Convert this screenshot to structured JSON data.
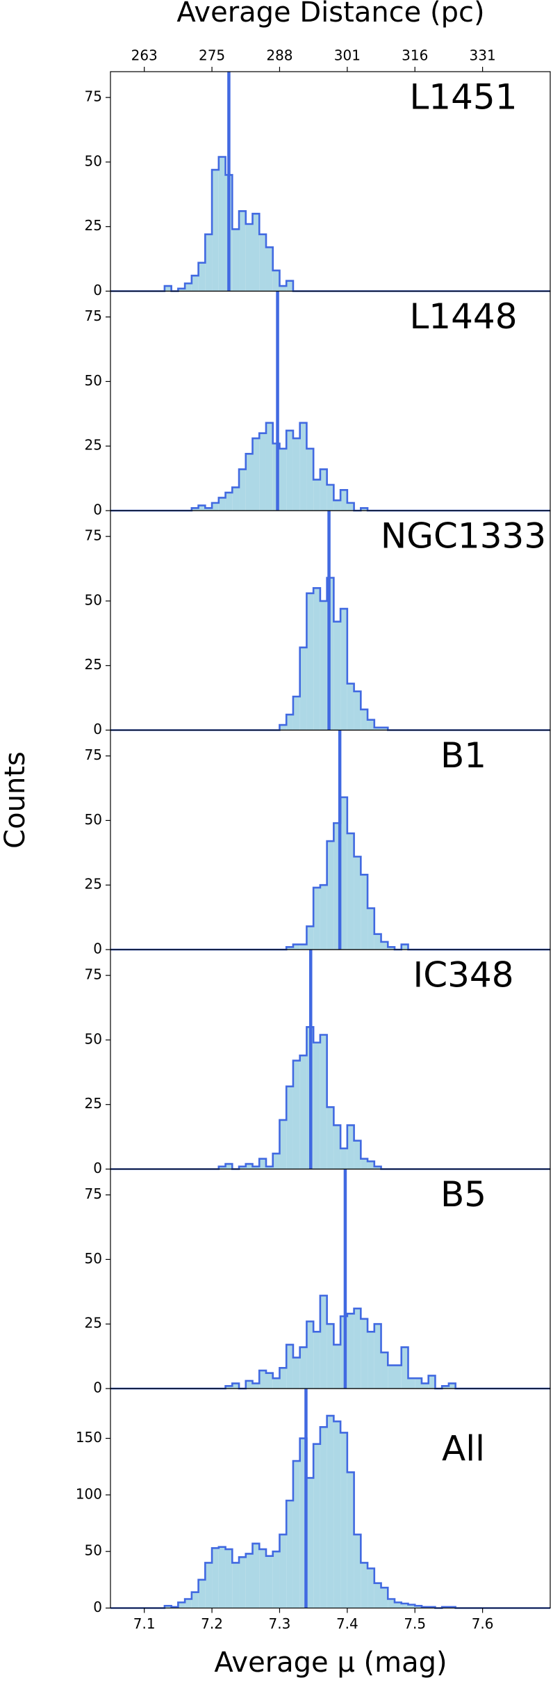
{
  "ylabel": "Counts",
  "top_axis": {
    "label": "Average Distance (pc)",
    "ticks": [
      {
        "value": 7.1,
        "label": "263"
      },
      {
        "value": 7.2,
        "label": "275"
      },
      {
        "value": 7.3,
        "label": "288"
      },
      {
        "value": 7.4,
        "label": "301"
      },
      {
        "value": 7.5,
        "label": "316"
      },
      {
        "value": 7.6,
        "label": "331"
      }
    ]
  },
  "x_axis": {
    "label": "Average μ (mag)",
    "xlim": [
      7.05,
      7.7
    ],
    "xticks": [
      7.1,
      7.2,
      7.3,
      7.4,
      7.5,
      7.6
    ]
  },
  "chart_data": [
    {
      "type": "histogram",
      "label": "L1451",
      "color": "#add8e6",
      "edgecolor": "#4169e1",
      "ylim": [
        0,
        85
      ],
      "yticks": [
        0,
        25,
        50,
        75
      ],
      "vline": 7.225,
      "bins": [
        7.13,
        7.14,
        7.15,
        7.16,
        7.17,
        7.18,
        7.19,
        7.2,
        7.21,
        7.22,
        7.23,
        7.24,
        7.25,
        7.26,
        7.27,
        7.28,
        7.29,
        7.3,
        7.31,
        7.32
      ],
      "values": [
        2,
        0,
        1,
        3,
        6,
        11,
        22,
        47,
        52,
        45,
        24,
        31,
        26,
        30,
        22,
        17,
        8,
        2,
        4
      ]
    },
    {
      "type": "histogram",
      "label": "L1448",
      "color": "#add8e6",
      "edgecolor": "#4169e1",
      "ylim": [
        0,
        85
      ],
      "yticks": [
        0,
        25,
        50,
        75
      ],
      "vline": 7.297,
      "bins": [
        7.17,
        7.18,
        7.19,
        7.2,
        7.21,
        7.22,
        7.23,
        7.24,
        7.25,
        7.26,
        7.27,
        7.28,
        7.29,
        7.3,
        7.31,
        7.32,
        7.33,
        7.34,
        7.35,
        7.36,
        7.37,
        7.38,
        7.39,
        7.4,
        7.41,
        7.42,
        7.43,
        7.44
      ],
      "values": [
        1,
        2,
        1,
        3,
        5,
        7,
        9,
        16,
        22,
        28,
        30,
        34,
        26,
        24,
        31,
        28,
        34,
        24,
        12,
        16,
        10,
        4,
        8,
        3,
        0,
        1,
        0
      ]
    },
    {
      "type": "histogram",
      "label": "NGC1333",
      "color": "#add8e6",
      "edgecolor": "#4169e1",
      "ylim": [
        0,
        85
      ],
      "yticks": [
        0,
        25,
        50,
        75
      ],
      "vline": 7.373,
      "bins": [
        7.3,
        7.31,
        7.32,
        7.33,
        7.34,
        7.35,
        7.36,
        7.37,
        7.38,
        7.39,
        7.4,
        7.41,
        7.42,
        7.43,
        7.44,
        7.45,
        7.46,
        7.47
      ],
      "values": [
        2,
        6,
        13,
        32,
        53,
        55,
        50,
        59,
        42,
        47,
        18,
        15,
        8,
        4,
        1,
        1,
        0
      ]
    },
    {
      "type": "histogram",
      "label": "B1",
      "color": "#add8e6",
      "edgecolor": "#4169e1",
      "ylim": [
        0,
        85
      ],
      "yticks": [
        0,
        25,
        50,
        75
      ],
      "vline": 7.389,
      "bins": [
        7.31,
        7.32,
        7.33,
        7.34,
        7.35,
        7.36,
        7.37,
        7.38,
        7.39,
        7.4,
        7.41,
        7.42,
        7.43,
        7.44,
        7.45,
        7.46,
        7.47,
        7.48,
        7.49
      ],
      "values": [
        1,
        2,
        2,
        9,
        24,
        25,
        42,
        49,
        59,
        45,
        36,
        29,
        16,
        6,
        3,
        1,
        0,
        2
      ]
    },
    {
      "type": "histogram",
      "label": "IC348",
      "color": "#add8e6",
      "edgecolor": "#4169e1",
      "ylim": [
        0,
        85
      ],
      "yticks": [
        0,
        25,
        50,
        75
      ],
      "vline": 7.346,
      "bins": [
        7.21,
        7.22,
        7.23,
        7.24,
        7.25,
        7.26,
        7.27,
        7.28,
        7.29,
        7.3,
        7.31,
        7.32,
        7.33,
        7.34,
        7.35,
        7.36,
        7.37,
        7.38,
        7.39,
        7.4,
        7.41,
        7.42,
        7.43,
        7.44,
        7.45
      ],
      "values": [
        1,
        2,
        0,
        1,
        2,
        1,
        4,
        1,
        6,
        19,
        32,
        42,
        44,
        55,
        49,
        52,
        24,
        17,
        8,
        17,
        11,
        4,
        3,
        1
      ]
    },
    {
      "type": "histogram",
      "label": "B5",
      "color": "#add8e6",
      "edgecolor": "#4169e1",
      "ylim": [
        0,
        85
      ],
      "yticks": [
        0,
        25,
        50,
        75
      ],
      "vline": 7.397,
      "bins": [
        7.22,
        7.23,
        7.24,
        7.25,
        7.26,
        7.27,
        7.28,
        7.29,
        7.3,
        7.31,
        7.32,
        7.33,
        7.34,
        7.35,
        7.36,
        7.37,
        7.38,
        7.39,
        7.4,
        7.41,
        7.42,
        7.43,
        7.44,
        7.45,
        7.46,
        7.47,
        7.48,
        7.49,
        7.5,
        7.51,
        7.52,
        7.53,
        7.54,
        7.55,
        7.56
      ],
      "values": [
        1,
        2,
        0,
        3,
        2,
        7,
        6,
        4,
        8,
        17,
        12,
        16,
        26,
        22,
        36,
        25,
        17,
        28,
        29,
        31,
        27,
        22,
        25,
        14,
        9,
        9,
        16,
        4,
        4,
        2,
        5,
        0,
        1,
        2
      ]
    },
    {
      "type": "histogram",
      "label": "All",
      "color": "#add8e6",
      "edgecolor": "#4169e1",
      "ylim": [
        0,
        194
      ],
      "yticks": [
        0,
        50,
        100,
        150
      ],
      "vline": 7.339,
      "bins": [
        7.13,
        7.14,
        7.15,
        7.16,
        7.17,
        7.18,
        7.19,
        7.2,
        7.21,
        7.22,
        7.23,
        7.24,
        7.25,
        7.26,
        7.27,
        7.28,
        7.29,
        7.3,
        7.31,
        7.32,
        7.33,
        7.34,
        7.35,
        7.36,
        7.37,
        7.38,
        7.39,
        7.4,
        7.41,
        7.42,
        7.43,
        7.44,
        7.45,
        7.46,
        7.47,
        7.48,
        7.49,
        7.5,
        7.51,
        7.52,
        7.53,
        7.54,
        7.55,
        7.56
      ],
      "values": [
        2,
        1,
        5,
        8,
        14,
        25,
        40,
        53,
        54,
        52,
        40,
        45,
        48,
        57,
        52,
        46,
        50,
        65,
        95,
        130,
        150,
        115,
        145,
        160,
        170,
        165,
        155,
        120,
        65,
        40,
        35,
        22,
        18,
        8,
        5,
        4,
        3,
        2,
        1,
        1,
        0,
        1,
        1
      ]
    }
  ]
}
